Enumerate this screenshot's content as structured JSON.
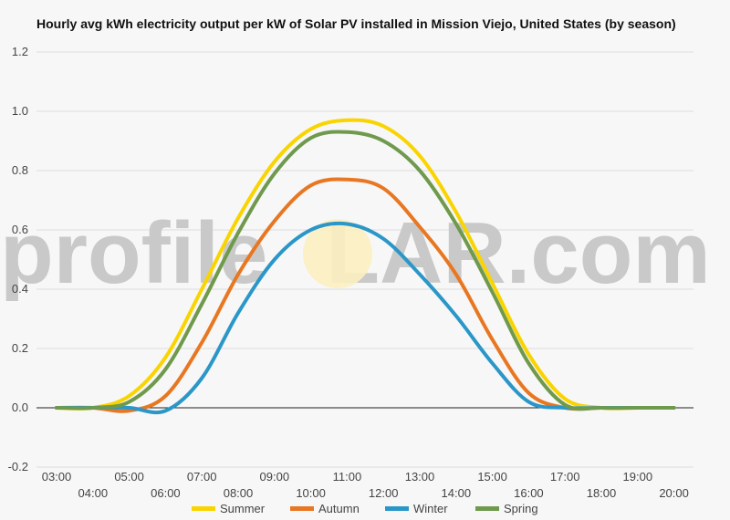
{
  "chart_data": {
    "type": "line",
    "title": "Hourly avg kWh electricity output per kW of Solar PV installed in Mission Viejo, United States (by season)",
    "xlabel": "",
    "ylabel": "",
    "ylim": [
      -0.2,
      1.2
    ],
    "yticks": [
      "1.2",
      "1.0",
      "0.8",
      "0.6",
      "0.4",
      "0.2",
      "0.0",
      "-0.2"
    ],
    "ytick_values": [
      1.2,
      1.0,
      0.8,
      0.6,
      0.4,
      0.2,
      0.0,
      -0.2
    ],
    "x": [
      "03:00",
      "04:00",
      "05:00",
      "06:00",
      "07:00",
      "08:00",
      "09:00",
      "10:00",
      "11:00",
      "12:00",
      "13:00",
      "14:00",
      "15:00",
      "16:00",
      "17:00",
      "18:00",
      "19:00",
      "20:00"
    ],
    "legend_position": "bottom",
    "grid": true,
    "series": [
      {
        "name": "Summer",
        "color": "#f9d400",
        "values": [
          0,
          0,
          0.04,
          0.17,
          0.4,
          0.64,
          0.83,
          0.94,
          0.97,
          0.95,
          0.85,
          0.66,
          0.42,
          0.18,
          0.03,
          0,
          0,
          0
        ]
      },
      {
        "name": "Autumn",
        "color": "#e87722",
        "values": [
          0,
          0,
          -0.01,
          0.04,
          0.22,
          0.45,
          0.63,
          0.75,
          0.77,
          0.74,
          0.61,
          0.45,
          0.23,
          0.05,
          0,
          0,
          0,
          0
        ]
      },
      {
        "name": "Winter",
        "color": "#2b97c8",
        "values": [
          0,
          0,
          0,
          -0.01,
          0.1,
          0.32,
          0.5,
          0.6,
          0.62,
          0.57,
          0.45,
          0.31,
          0.15,
          0.02,
          0,
          0,
          0,
          0
        ]
      },
      {
        "name": "Spring",
        "color": "#6f9a4d",
        "values": [
          0,
          0,
          0.02,
          0.13,
          0.35,
          0.59,
          0.79,
          0.91,
          0.93,
          0.9,
          0.8,
          0.62,
          0.39,
          0.15,
          0.01,
          0,
          0,
          0
        ]
      }
    ]
  },
  "watermark": {
    "text_left": "profile",
    "text_mid": "S",
    "text_right": "LAR.com"
  }
}
